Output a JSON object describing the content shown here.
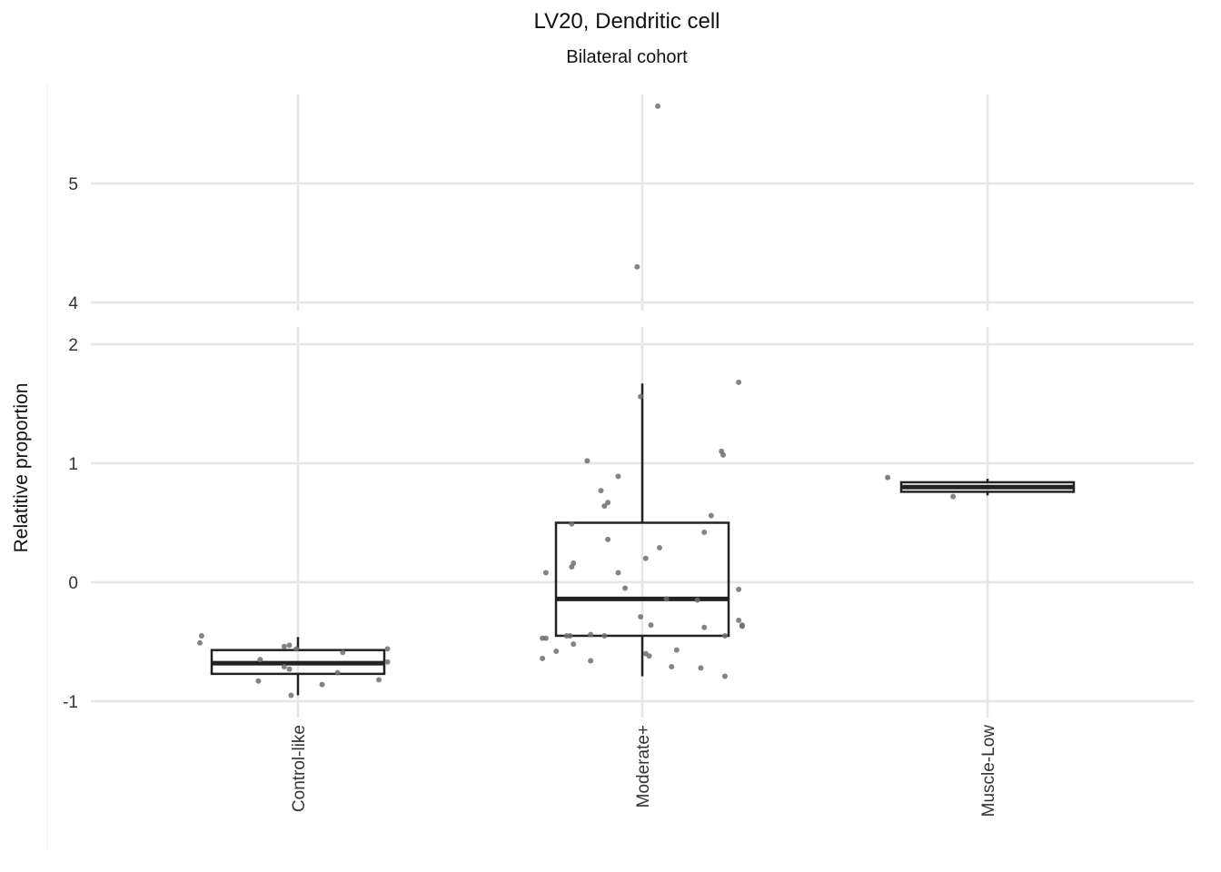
{
  "chart_data": {
    "type": "box",
    "title": "LV20, Dendritic cell",
    "subtitle": "Bilateral cohort",
    "xlabel": "",
    "ylabel": "Relatitive proportion",
    "categories": [
      "Control-like",
      "Moderate+",
      "Muscle-Low"
    ],
    "y_axis_break": {
      "lower_panel_ylim": [
        -1.05,
        2.1
      ],
      "upper_panel_ylim": [
        3.95,
        5.7
      ]
    },
    "lower_panel_ticks": [
      "-1",
      "0",
      "1",
      "2"
    ],
    "upper_panel_ticks": [
      "4",
      "5"
    ],
    "grid": true,
    "boxes": [
      {
        "category": "Control-like",
        "q1": -0.77,
        "median": -0.68,
        "q3": -0.57,
        "whisker_low": -0.95,
        "whisker_high": -0.46
      },
      {
        "category": "Moderate+",
        "q1": -0.45,
        "median": -0.14,
        "q3": 0.5,
        "whisker_low": -0.79,
        "whisker_high": 1.67
      },
      {
        "category": "Muscle-Low",
        "q1": 0.76,
        "median": 0.8,
        "q3": 0.84,
        "whisker_low": 0.73,
        "whisker_high": 0.87
      }
    ],
    "points": [
      {
        "category": "Control-like",
        "x": -0.28,
        "y": -0.45
      },
      {
        "category": "Control-like",
        "x": -0.285,
        "y": -0.51
      },
      {
        "category": "Control-like",
        "x": -0.11,
        "y": -0.65
      },
      {
        "category": "Control-like",
        "x": -0.115,
        "y": -0.83
      },
      {
        "category": "Control-like",
        "x": -0.04,
        "y": -0.54
      },
      {
        "category": "Control-like",
        "x": -0.025,
        "y": -0.53
      },
      {
        "category": "Control-like",
        "x": -0.04,
        "y": -0.71
      },
      {
        "category": "Control-like",
        "x": -0.025,
        "y": -0.73
      },
      {
        "category": "Control-like",
        "x": -0.02,
        "y": -0.95
      },
      {
        "category": "Control-like",
        "x": -0.005,
        "y": -0.56
      },
      {
        "category": "Control-like",
        "x": 0.07,
        "y": -0.86
      },
      {
        "category": "Control-like",
        "x": 0.115,
        "y": -0.76
      },
      {
        "category": "Control-like",
        "x": 0.13,
        "y": -0.59
      },
      {
        "category": "Control-like",
        "x": 0.235,
        "y": -0.82
      },
      {
        "category": "Control-like",
        "x": 0.26,
        "y": -0.56
      },
      {
        "category": "Control-like",
        "x": 0.26,
        "y": -0.67
      },
      {
        "category": "Moderate+",
        "x": -0.28,
        "y": 0.08
      },
      {
        "category": "Moderate+",
        "x": -0.29,
        "y": -0.47
      },
      {
        "category": "Moderate+",
        "x": -0.29,
        "y": -0.64
      },
      {
        "category": "Moderate+",
        "x": -0.25,
        "y": -0.58
      },
      {
        "category": "Moderate+",
        "x": -0.21,
        "y": -0.45
      },
      {
        "category": "Moderate+",
        "x": -0.205,
        "y": 0.13
      },
      {
        "category": "Moderate+",
        "x": -0.2,
        "y": 0.16
      },
      {
        "category": "Moderate+",
        "x": -0.2,
        "y": -0.52
      },
      {
        "category": "Moderate+",
        "x": -0.205,
        "y": 0.49
      },
      {
        "category": "Moderate+",
        "x": -0.16,
        "y": 1.02
      },
      {
        "category": "Moderate+",
        "x": -0.15,
        "y": -0.44
      },
      {
        "category": "Moderate+",
        "x": -0.15,
        "y": -0.66
      },
      {
        "category": "Moderate+",
        "x": -0.12,
        "y": 0.77
      },
      {
        "category": "Moderate+",
        "x": -0.1,
        "y": 0.36
      },
      {
        "category": "Moderate+",
        "x": -0.11,
        "y": -0.45
      },
      {
        "category": "Moderate+",
        "x": -0.11,
        "y": 0.64
      },
      {
        "category": "Moderate+",
        "x": -0.1,
        "y": 0.67
      },
      {
        "category": "Moderate+",
        "x": -0.07,
        "y": 0.89
      },
      {
        "category": "Moderate+",
        "x": -0.07,
        "y": 0.08
      },
      {
        "category": "Moderate+",
        "x": -0.05,
        "y": -0.05
      },
      {
        "category": "Moderate+",
        "x": -0.005,
        "y": 1.56
      },
      {
        "category": "Moderate+",
        "x": -0.005,
        "y": -0.29
      },
      {
        "category": "Moderate+",
        "x": 0.01,
        "y": -0.6
      },
      {
        "category": "Moderate+",
        "x": 0.01,
        "y": 0.2
      },
      {
        "category": "Moderate+",
        "x": 0.02,
        "y": -0.62
      },
      {
        "category": "Moderate+",
        "x": 0.025,
        "y": -0.36
      },
      {
        "category": "Moderate+",
        "x": 0.05,
        "y": 0.29
      },
      {
        "category": "Moderate+",
        "x": 0.07,
        "y": -0.14
      },
      {
        "category": "Moderate+",
        "x": 0.085,
        "y": -0.71
      },
      {
        "category": "Moderate+",
        "x": 0.1,
        "y": -0.57
      },
      {
        "category": "Moderate+",
        "x": 0.16,
        "y": -0.15
      },
      {
        "category": "Moderate+",
        "x": 0.17,
        "y": -0.72
      },
      {
        "category": "Moderate+",
        "x": 0.18,
        "y": 0.42
      },
      {
        "category": "Moderate+",
        "x": 0.18,
        "y": -0.38
      },
      {
        "category": "Moderate+",
        "x": 0.2,
        "y": 0.56
      },
      {
        "category": "Moderate+",
        "x": 0.23,
        "y": 1.1
      },
      {
        "category": "Moderate+",
        "x": 0.235,
        "y": 1.07
      },
      {
        "category": "Moderate+",
        "x": 0.24,
        "y": -0.45
      },
      {
        "category": "Moderate+",
        "x": 0.24,
        "y": -0.79
      },
      {
        "category": "Moderate+",
        "x": 0.28,
        "y": 1.68
      },
      {
        "category": "Moderate+",
        "x": 0.28,
        "y": -0.06
      },
      {
        "category": "Moderate+",
        "x": 0.28,
        "y": -0.32
      },
      {
        "category": "Moderate+",
        "x": 0.29,
        "y": -0.36
      },
      {
        "category": "Moderate+",
        "x": 0.29,
        "y": -0.37
      },
      {
        "category": "Moderate+",
        "x": -0.28,
        "y": -0.47
      },
      {
        "category": "Moderate+",
        "x": -0.22,
        "y": -0.45
      },
      {
        "category": "Moderate+",
        "x": -0.015,
        "y": 4.3
      },
      {
        "category": "Moderate+",
        "x": 0.045,
        "y": 5.65
      },
      {
        "category": "Muscle-Low",
        "x": -0.29,
        "y": 0.88
      },
      {
        "category": "Muscle-Low",
        "x": -0.1,
        "y": 0.72
      }
    ],
    "colors": {
      "box": "#222222",
      "point": "#6e6e6e",
      "grid": "#e6e6e6"
    }
  }
}
